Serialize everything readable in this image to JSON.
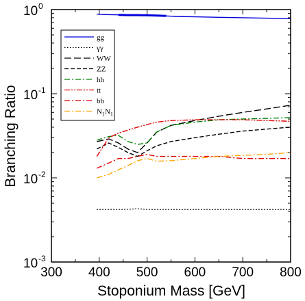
{
  "chart_data": {
    "type": "line",
    "title": "",
    "xlabel": "Stoponium Mass  [GeV]",
    "ylabel": "Branching  Ratio",
    "xlim": [
      300,
      800
    ],
    "ylim": [
      0.001,
      1
    ],
    "yscale": "log",
    "x_ticks": [
      "300",
      "400",
      "500",
      "600",
      "700",
      "800"
    ],
    "y_ticks": [
      {
        "base": "10",
        "exp": "0",
        "value": 1
      },
      {
        "base": "10",
        "exp": "-1",
        "value": 0.1
      },
      {
        "base": "10",
        "exp": "-2",
        "value": 0.01
      },
      {
        "base": "10",
        "exp": "-3",
        "value": 0.001
      }
    ],
    "legend_position": "top-left",
    "series": [
      {
        "name": "gg",
        "color": "#0000dd",
        "dash": "solid",
        "x": [
          395,
          420,
          440,
          460,
          480,
          500,
          520,
          540,
          560,
          600,
          650,
          700,
          750,
          800
        ],
        "y": [
          0.88,
          0.87,
          0.865,
          0.86,
          0.86,
          0.855,
          0.85,
          0.84,
          0.83,
          0.82,
          0.81,
          0.8,
          0.79,
          0.78
        ]
      },
      {
        "name": "γγ",
        "color": "#000000",
        "dash": "dotted",
        "x": [
          395,
          450,
          480,
          500,
          550,
          600,
          650,
          700,
          750,
          800
        ],
        "y": [
          0.0042,
          0.0042,
          0.0043,
          0.0042,
          0.0042,
          0.0042,
          0.0042,
          0.0042,
          0.0042,
          0.0042
        ]
      },
      {
        "name": "WW",
        "color": "#000000",
        "dash": "longdash",
        "x": [
          395,
          420,
          440,
          460,
          480,
          500,
          520,
          550,
          600,
          650,
          700,
          750,
          800
        ],
        "y": [
          0.027,
          0.029,
          0.026,
          0.022,
          0.02,
          0.026,
          0.035,
          0.042,
          0.048,
          0.054,
          0.06,
          0.066,
          0.073
        ]
      },
      {
        "name": "ZZ",
        "color": "#000000",
        "dash": "dashed",
        "x": [
          395,
          420,
          440,
          460,
          480,
          500,
          520,
          550,
          600,
          650,
          700,
          750,
          800
        ],
        "y": [
          0.022,
          0.026,
          0.023,
          0.02,
          0.018,
          0.021,
          0.024,
          0.027,
          0.03,
          0.033,
          0.036,
          0.038,
          0.04
        ]
      },
      {
        "name": "hh",
        "color": "#008000",
        "dash": "dashdot",
        "x": [
          395,
          420,
          440,
          460,
          480,
          500,
          520,
          550,
          600,
          650,
          700,
          750,
          800
        ],
        "y": [
          0.028,
          0.031,
          0.032,
          0.027,
          0.025,
          0.026,
          0.035,
          0.042,
          0.046,
          0.049,
          0.05,
          0.051,
          0.052
        ]
      },
      {
        "name": "tt",
        "color": "#dd0000",
        "dash": "dashdotdot",
        "x": [
          395,
          420,
          440,
          460,
          480,
          500,
          520,
          550,
          600,
          650,
          700,
          750,
          800
        ],
        "y": [
          0.018,
          0.03,
          0.034,
          0.037,
          0.04,
          0.043,
          0.046,
          0.048,
          0.049,
          0.049,
          0.049,
          0.048,
          0.047
        ]
      },
      {
        "name": "bb",
        "color": "#dd0000",
        "dash": "dashdot",
        "x": [
          395,
          420,
          440,
          460,
          480,
          500,
          520,
          550,
          600,
          650,
          700,
          750,
          800
        ],
        "y": [
          0.013,
          0.015,
          0.017,
          0.017,
          0.018,
          0.019,
          0.018,
          0.018,
          0.018,
          0.018,
          0.017,
          0.017,
          0.017
        ]
      },
      {
        "name": "N1N1",
        "label_base": "N",
        "label_sub": "1",
        "color": "#ffa500",
        "dash": "dashdot",
        "x": [
          395,
          420,
          440,
          460,
          480,
          500,
          520,
          550,
          600,
          650,
          700,
          750,
          800
        ],
        "y": [
          0.01,
          0.011,
          0.0125,
          0.014,
          0.016,
          0.017,
          0.0158,
          0.016,
          0.017,
          0.018,
          0.0185,
          0.019,
          0.02
        ]
      }
    ]
  }
}
